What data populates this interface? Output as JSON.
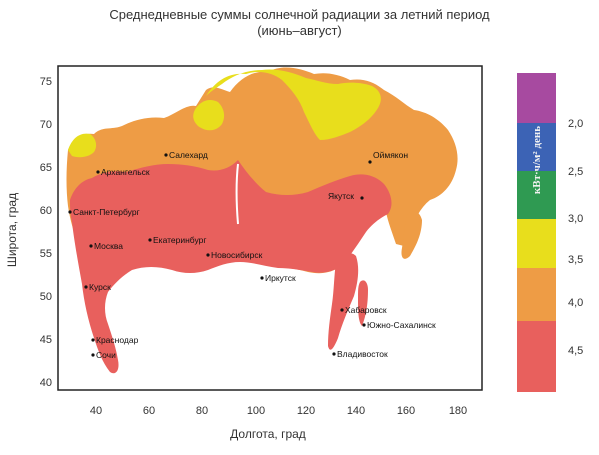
{
  "title_line1": "Среднедневные суммы солнечной радиации за летний период",
  "title_line2": "(июнь–август)",
  "axes": {
    "x_label": "Долгота, град",
    "y_label": "Широта, град",
    "x_ticks": [
      "40",
      "60",
      "80",
      "100",
      "120",
      "140",
      "160",
      "180"
    ],
    "y_ticks": [
      "40",
      "45",
      "50",
      "55",
      "60",
      "65",
      "70",
      "75"
    ]
  },
  "legend": {
    "unit": "кВт·ч/м² день",
    "bands": [
      {
        "label": "2,0",
        "color": "#a74aa0"
      },
      {
        "label": "2,5",
        "color": "#3c63b5"
      },
      {
        "label": "3,0",
        "color": "#2f9a52"
      },
      {
        "label": "3,5",
        "color": "#e8de1c"
      },
      {
        "label": "4,0",
        "color": "#ee9c45"
      },
      {
        "label": "4,5",
        "color": "#e8605d"
      }
    ]
  },
  "colors": {
    "zone_low": "#e8de1c",
    "zone_mid": "#ee9c45",
    "zone_high": "#e8605d",
    "map_frame": "#222222"
  },
  "cities": [
    {
      "name": "Салехард"
    },
    {
      "name": "Архангельск"
    },
    {
      "name": "Санкт-Петербург"
    },
    {
      "name": "Москва"
    },
    {
      "name": "Екатеринбург"
    },
    {
      "name": "Новосибирск"
    },
    {
      "name": "Якутск"
    },
    {
      "name": "Оймякон"
    },
    {
      "name": "Иркутск"
    },
    {
      "name": "Курск"
    },
    {
      "name": "Хабаровск"
    },
    {
      "name": "Южно-Сахалинск"
    },
    {
      "name": "Краснодар"
    },
    {
      "name": "Сочи"
    },
    {
      "name": "Владивосток"
    }
  ]
}
